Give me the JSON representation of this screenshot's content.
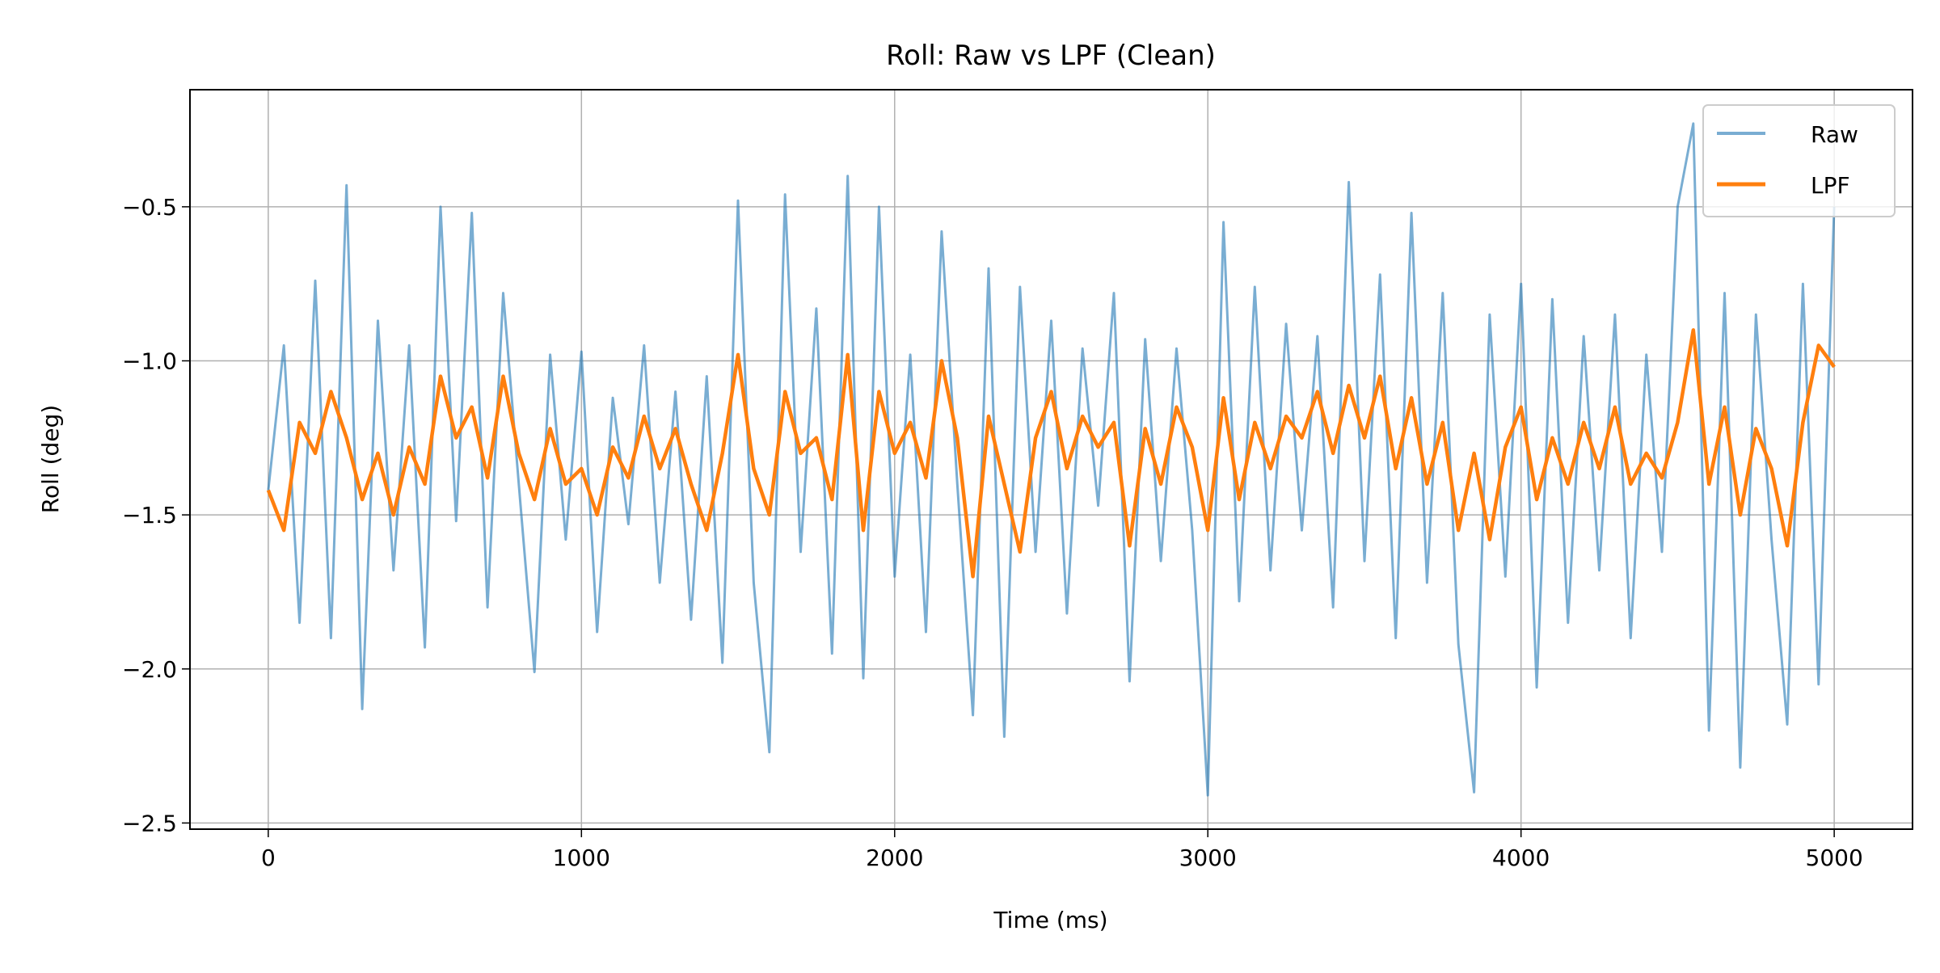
{
  "chart_data": {
    "type": "line",
    "title": "Roll: Raw vs LPF (Clean)",
    "xlabel": "Time (ms)",
    "ylabel": "Roll (deg)",
    "xlim": [
      -250,
      5250
    ],
    "ylim": [
      -2.52,
      -0.12
    ],
    "xticks": [
      0,
      1000,
      2000,
      3000,
      4000,
      5000
    ],
    "xtick_labels": [
      "0",
      "1000",
      "2000",
      "3000",
      "4000",
      "5000"
    ],
    "yticks": [
      -0.5,
      -1.0,
      -1.5,
      -2.0,
      -2.5
    ],
    "ytick_labels": [
      "−0.5",
      "−1.0",
      "−1.5",
      "−2.0",
      "−2.5"
    ],
    "grid": true,
    "legend_position": "top-right",
    "x": [
      0,
      50,
      100,
      150,
      200,
      250,
      300,
      350,
      400,
      450,
      500,
      550,
      600,
      650,
      700,
      750,
      800,
      850,
      900,
      950,
      1000,
      1050,
      1100,
      1150,
      1200,
      1250,
      1300,
      1350,
      1400,
      1450,
      1500,
      1550,
      1600,
      1650,
      1700,
      1750,
      1800,
      1850,
      1900,
      1950,
      2000,
      2050,
      2100,
      2150,
      2200,
      2250,
      2300,
      2350,
      2400,
      2450,
      2500,
      2550,
      2600,
      2650,
      2700,
      2750,
      2800,
      2850,
      2900,
      2950,
      3000,
      3050,
      3100,
      3150,
      3200,
      3250,
      3300,
      3350,
      3400,
      3450,
      3500,
      3550,
      3600,
      3650,
      3700,
      3750,
      3800,
      3850,
      3900,
      3950,
      4000,
      4050,
      4100,
      4150,
      4200,
      4250,
      4300,
      4350,
      4400,
      4450,
      4500,
      4550,
      4600,
      4650,
      4700,
      4750,
      4800,
      4850,
      4900,
      4950,
      5000
    ],
    "series": [
      {
        "name": "Raw",
        "color": "#1f77b4",
        "opacity": 0.6,
        "values": [
          -1.42,
          -0.95,
          -1.85,
          -0.74,
          -1.9,
          -0.43,
          -2.13,
          -0.87,
          -1.68,
          -0.95,
          -1.93,
          -0.5,
          -1.52,
          -0.52,
          -1.8,
          -0.78,
          -1.4,
          -2.01,
          -0.98,
          -1.58,
          -0.97,
          -1.88,
          -1.12,
          -1.53,
          -0.95,
          -1.72,
          -1.1,
          -1.84,
          -1.05,
          -1.98,
          -0.48,
          -1.72,
          -2.27,
          -0.46,
          -1.62,
          -0.83,
          -1.95,
          -0.4,
          -2.03,
          -0.5,
          -1.7,
          -0.98,
          -1.88,
          -0.58,
          -1.4,
          -2.15,
          -0.7,
          -2.22,
          -0.76,
          -1.62,
          -0.87,
          -1.82,
          -0.96,
          -1.47,
          -0.78,
          -2.04,
          -0.93,
          -1.65,
          -0.96,
          -1.55,
          -2.41,
          -0.55,
          -1.78,
          -0.76,
          -1.68,
          -0.88,
          -1.55,
          -0.92,
          -1.8,
          -0.42,
          -1.65,
          -0.72,
          -1.9,
          -0.52,
          -1.72,
          -0.78,
          -1.92,
          -2.4,
          -0.85,
          -1.7,
          -0.75,
          -2.06,
          -0.8,
          -1.85,
          -0.92,
          -1.68,
          -0.85,
          -1.9,
          -0.98,
          -1.62,
          -0.5,
          -0.23,
          -2.2,
          -0.78,
          -2.32,
          -0.85,
          -1.58,
          -2.18,
          -0.75,
          -2.05,
          -0.5
        ]
      },
      {
        "name": "LPF",
        "color": "#ff7f0e",
        "opacity": 1,
        "values": [
          -1.42,
          -1.55,
          -1.2,
          -1.3,
          -1.1,
          -1.25,
          -1.45,
          -1.3,
          -1.5,
          -1.28,
          -1.4,
          -1.05,
          -1.25,
          -1.15,
          -1.38,
          -1.05,
          -1.3,
          -1.45,
          -1.22,
          -1.4,
          -1.35,
          -1.5,
          -1.28,
          -1.38,
          -1.18,
          -1.35,
          -1.22,
          -1.4,
          -1.55,
          -1.3,
          -0.98,
          -1.35,
          -1.5,
          -1.1,
          -1.3,
          -1.25,
          -1.45,
          -0.98,
          -1.55,
          -1.1,
          -1.3,
          -1.2,
          -1.38,
          -1.0,
          -1.25,
          -1.7,
          -1.18,
          -1.4,
          -1.62,
          -1.25,
          -1.1,
          -1.35,
          -1.18,
          -1.28,
          -1.2,
          -1.6,
          -1.22,
          -1.4,
          -1.15,
          -1.28,
          -1.55,
          -1.12,
          -1.45,
          -1.2,
          -1.35,
          -1.18,
          -1.25,
          -1.1,
          -1.3,
          -1.08,
          -1.25,
          -1.05,
          -1.35,
          -1.12,
          -1.4,
          -1.2,
          -1.55,
          -1.3,
          -1.58,
          -1.28,
          -1.15,
          -1.45,
          -1.25,
          -1.4,
          -1.2,
          -1.35,
          -1.15,
          -1.4,
          -1.3,
          -1.38,
          -1.2,
          -0.9,
          -1.4,
          -1.15,
          -1.5,
          -1.22,
          -1.35,
          -1.6,
          -1.2,
          -0.95,
          -1.02
        ]
      }
    ]
  }
}
